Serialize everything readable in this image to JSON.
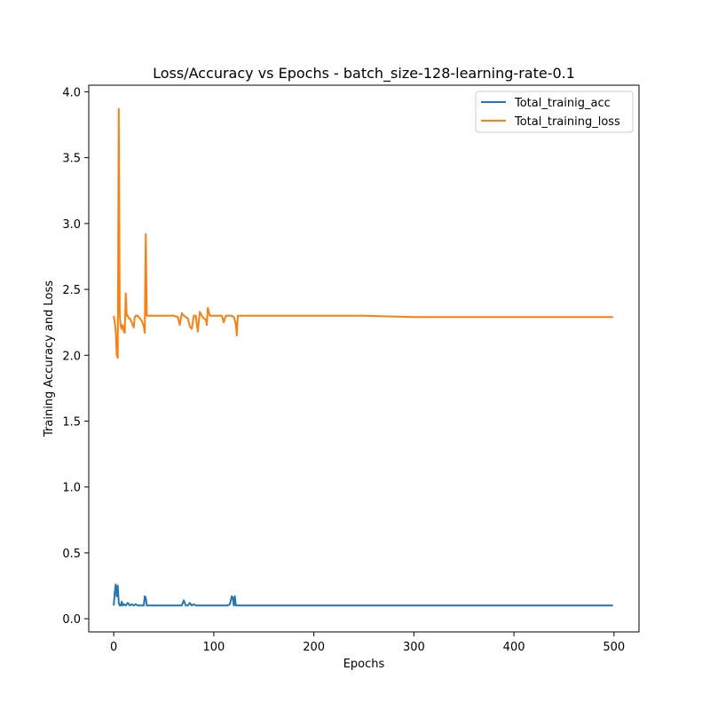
{
  "chart_data": {
    "type": "line",
    "title": "Loss/Accuracy vs Epochs - batch_size-128-learning-rate-0.1",
    "xlabel": "Epochs",
    "ylabel": "Training Accuracy and Loss",
    "xlim": [
      -25,
      525
    ],
    "ylim": [
      -0.1,
      4.05
    ],
    "xticks": [
      0,
      100,
      200,
      300,
      400,
      500
    ],
    "yticks": [
      0.0,
      0.5,
      1.0,
      1.5,
      2.0,
      2.5,
      3.0,
      3.5,
      4.0
    ],
    "xtick_labels": [
      "0",
      "100",
      "200",
      "300",
      "400",
      "500"
    ],
    "ytick_labels": [
      "0.0",
      "0.5",
      "1.0",
      "1.5",
      "2.0",
      "2.5",
      "3.0",
      "3.5",
      "4.0"
    ],
    "grid": false,
    "legend_position": "top-right",
    "series": [
      {
        "name": "Total_trainig_acc",
        "color": "#1f77b4",
        "x": [
          0,
          1,
          2,
          3,
          4,
          5,
          6,
          7,
          8,
          9,
          10,
          12,
          14,
          16,
          18,
          20,
          22,
          24,
          26,
          28,
          30,
          31,
          32,
          33,
          34,
          36,
          40,
          50,
          60,
          66,
          68,
          70,
          72,
          74,
          76,
          78,
          80,
          82,
          84,
          90,
          100,
          110,
          114,
          116,
          118,
          119,
          120,
          121,
          122,
          123,
          124,
          126,
          130,
          150,
          200,
          250,
          300,
          350,
          400,
          450,
          499
        ],
        "y": [
          0.1,
          0.2,
          0.26,
          0.17,
          0.25,
          0.12,
          0.1,
          0.1,
          0.13,
          0.1,
          0.11,
          0.1,
          0.12,
          0.1,
          0.11,
          0.1,
          0.11,
          0.1,
          0.1,
          0.1,
          0.1,
          0.17,
          0.16,
          0.1,
          0.1,
          0.1,
          0.1,
          0.1,
          0.1,
          0.1,
          0.1,
          0.14,
          0.1,
          0.1,
          0.12,
          0.1,
          0.11,
          0.1,
          0.1,
          0.1,
          0.1,
          0.1,
          0.1,
          0.11,
          0.17,
          0.16,
          0.1,
          0.17,
          0.1,
          0.1,
          0.1,
          0.1,
          0.1,
          0.1,
          0.1,
          0.1,
          0.1,
          0.1,
          0.1,
          0.1,
          0.1
        ]
      },
      {
        "name": "Total_training_loss",
        "color": "#ff7f0e",
        "x": [
          0,
          1,
          2,
          3,
          4,
          5,
          6,
          7,
          8,
          9,
          10,
          11,
          12,
          13,
          14,
          15,
          16,
          18,
          20,
          21,
          22,
          24,
          26,
          28,
          30,
          31,
          32,
          33,
          34,
          35,
          36,
          40,
          50,
          60,
          64,
          66,
          68,
          70,
          72,
          74,
          76,
          78,
          80,
          82,
          84,
          86,
          88,
          90,
          92,
          93,
          94,
          96,
          100,
          104,
          108,
          110,
          112,
          114,
          116,
          118,
          120,
          122,
          123,
          124,
          125,
          126,
          130,
          150,
          200,
          250,
          300,
          350,
          400,
          450,
          499
        ],
        "y": [
          2.3,
          2.25,
          2.18,
          2.0,
          1.98,
          3.87,
          2.3,
          2.22,
          2.2,
          2.23,
          2.18,
          2.17,
          2.47,
          2.3,
          2.3,
          2.28,
          2.28,
          2.25,
          2.21,
          2.29,
          2.3,
          2.3,
          2.28,
          2.26,
          2.22,
          2.17,
          2.92,
          2.3,
          2.3,
          2.3,
          2.3,
          2.3,
          2.3,
          2.3,
          2.29,
          2.23,
          2.32,
          2.3,
          2.29,
          2.28,
          2.22,
          2.2,
          2.3,
          2.3,
          2.18,
          2.33,
          2.3,
          2.28,
          2.27,
          2.23,
          2.36,
          2.3,
          2.3,
          2.3,
          2.3,
          2.25,
          2.3,
          2.3,
          2.3,
          2.3,
          2.29,
          2.24,
          2.15,
          2.3,
          2.3,
          2.3,
          2.3,
          2.3,
          2.3,
          2.3,
          2.29,
          2.29,
          2.29,
          2.29,
          2.29
        ]
      }
    ]
  }
}
